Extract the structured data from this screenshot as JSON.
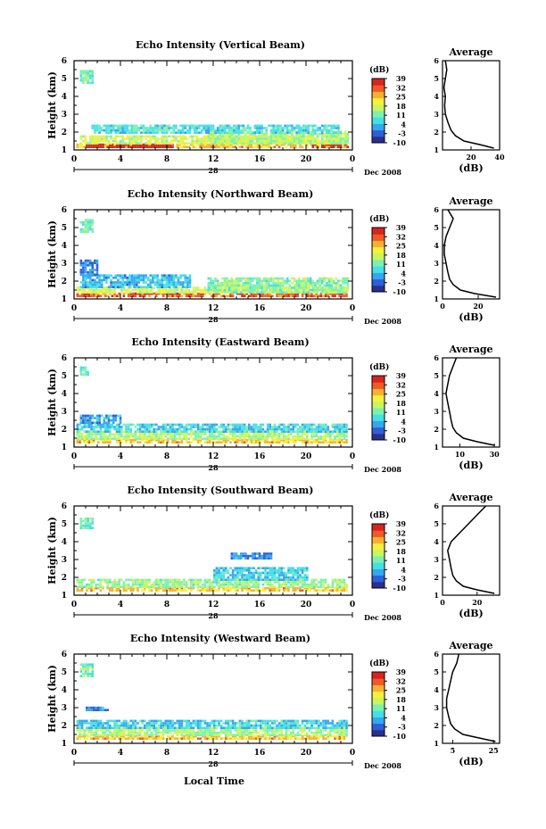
{
  "figure": {
    "xlabel_bottom": "Local Time",
    "date_label": "Dec 2008",
    "day_label": "28",
    "ylabel": "Height (km)",
    "colorbar_unit": "(dB)",
    "avg_title": "Average",
    "avg_xlabel": "(dB)"
  },
  "chart_data": [
    {
      "type": "heatmap",
      "title": "Echo Intensity (Vertical Beam)",
      "x_ticks": [
        "0",
        "4",
        "8",
        "12",
        "16",
        "20",
        "0"
      ],
      "y_ticks": [
        "1",
        "2",
        "3",
        "4",
        "5",
        "6"
      ],
      "xlim": [
        0,
        24
      ],
      "ylim": [
        1,
        6
      ],
      "colorbar_ticks": [
        "39",
        "32",
        "25",
        "18",
        "11",
        "4",
        "-3",
        "-10"
      ],
      "colorbar_range": [
        -10,
        39
      ],
      "colormap": [
        "#2b2f8c",
        "#2f5fd6",
        "#35a7ee",
        "#45e0e6",
        "#7cf0b0",
        "#c8f560",
        "#f7f03a",
        "#f7b030",
        "#f05a28",
        "#d9241e"
      ],
      "data_regions": [
        {
          "x": [
            0.5,
            1.5
          ],
          "y": [
            4.7,
            5.4
          ],
          "level": 11
        },
        {
          "x": [
            0.2,
            23.5
          ],
          "y": [
            1.1,
            1.3
          ],
          "level": 25
        },
        {
          "x": [
            1,
            8.5
          ],
          "y": [
            1.1,
            1.3
          ],
          "level": 39
        },
        {
          "x": [
            20.5,
            23.5
          ],
          "y": [
            1.1,
            1.3
          ],
          "level": 39
        },
        {
          "x": [
            0.5,
            23.5
          ],
          "y": [
            1.3,
            1.7
          ],
          "level": 18
        },
        {
          "x": [
            11.5,
            23.5
          ],
          "y": [
            1.3,
            2.0
          ],
          "level": 15
        },
        {
          "x": [
            1.5,
            23
          ],
          "y": [
            1.9,
            2.3
          ],
          "level": 8
        }
      ],
      "avg": {
        "xlim": [
          0,
          40
        ],
        "x_ticks": [
          "20",
          "40"
        ],
        "y_ticks": [
          "1",
          "2",
          "3",
          "4",
          "5",
          "6"
        ],
        "height": [
          1.1,
          1.3,
          1.5,
          1.8,
          2.1,
          2.5,
          3.0,
          3.5,
          4.0,
          4.5,
          5.0,
          5.5,
          6.0
        ],
        "value": [
          36,
          26,
          15,
          9,
          6,
          4,
          2,
          1.5,
          2,
          1,
          2,
          3,
          2
        ]
      }
    },
    {
      "type": "heatmap",
      "title": "Echo Intensity (Northward Beam)",
      "x_ticks": [
        "0",
        "4",
        "8",
        "12",
        "16",
        "20",
        "0"
      ],
      "y_ticks": [
        "1",
        "2",
        "3",
        "4",
        "5",
        "6"
      ],
      "xlim": [
        0,
        24
      ],
      "ylim": [
        1,
        6
      ],
      "colorbar_ticks": [
        "39",
        "32",
        "25",
        "18",
        "11",
        "4",
        "-3",
        "-10"
      ],
      "colorbar_range": [
        -10,
        39
      ],
      "data_regions": [
        {
          "x": [
            0.5,
            1.5
          ],
          "y": [
            4.7,
            5.4
          ],
          "level": 11
        },
        {
          "x": [
            0.2,
            23.5
          ],
          "y": [
            1.1,
            1.3
          ],
          "level": 32
        },
        {
          "x": [
            0.2,
            23.5
          ],
          "y": [
            1.3,
            1.6
          ],
          "level": 18
        },
        {
          "x": [
            11.5,
            23.5
          ],
          "y": [
            1.3,
            2.2
          ],
          "level": 13
        },
        {
          "x": [
            0.5,
            10
          ],
          "y": [
            1.6,
            2.3
          ],
          "level": 4
        },
        {
          "x": [
            0.5,
            2
          ],
          "y": [
            2.3,
            3.2
          ],
          "level": 0
        }
      ],
      "avg": {
        "xlim": [
          0,
          32
        ],
        "x_ticks": [
          "0",
          "20"
        ],
        "y_ticks": [
          "1",
          "2",
          "3",
          "4",
          "5",
          "6"
        ],
        "height": [
          1.1,
          1.3,
          1.5,
          1.8,
          2.1,
          2.5,
          3.0,
          3.5,
          4.0,
          4.5,
          5.0,
          5.5,
          6.0
        ],
        "value": [
          30,
          18,
          10,
          6,
          4,
          3,
          2,
          1,
          1,
          2,
          4,
          6,
          3
        ]
      }
    },
    {
      "type": "heatmap",
      "title": "Echo Intensity (Eastward Beam)",
      "x_ticks": [
        "0",
        "4",
        "8",
        "12",
        "16",
        "20",
        "0"
      ],
      "y_ticks": [
        "1",
        "2",
        "3",
        "4",
        "5",
        "6"
      ],
      "xlim": [
        0,
        24
      ],
      "ylim": [
        1,
        6
      ],
      "colorbar_ticks": [
        "39",
        "32",
        "25",
        "18",
        "11",
        "4",
        "-3",
        "-10"
      ],
      "colorbar_range": [
        -10,
        39
      ],
      "data_regions": [
        {
          "x": [
            0.5,
            1.2
          ],
          "y": [
            5.0,
            5.4
          ],
          "level": 11
        },
        {
          "x": [
            0.2,
            23.5
          ],
          "y": [
            1.2,
            1.4
          ],
          "level": 25
        },
        {
          "x": [
            0.2,
            23.5
          ],
          "y": [
            1.4,
            1.8
          ],
          "level": 16
        },
        {
          "x": [
            0.2,
            23.5
          ],
          "y": [
            1.8,
            2.3
          ],
          "level": 6
        },
        {
          "x": [
            0.5,
            4
          ],
          "y": [
            2.3,
            2.8
          ],
          "level": 2
        }
      ],
      "avg": {
        "xlim": [
          0,
          33
        ],
        "x_ticks": [
          "10",
          "30"
        ],
        "y_ticks": [
          "1",
          "2",
          "3",
          "4",
          "5",
          "6"
        ],
        "height": [
          1.1,
          1.3,
          1.5,
          1.8,
          2.1,
          2.5,
          3.0,
          3.5,
          4.0,
          4.5,
          5.0,
          5.5,
          6.0
        ],
        "value": [
          30,
          20,
          12,
          8,
          6,
          5,
          4,
          3,
          2,
          3,
          4,
          6,
          8
        ]
      }
    },
    {
      "type": "heatmap",
      "title": "Echo Intensity (Southward Beam)",
      "x_ticks": [
        "0",
        "4",
        "8",
        "12",
        "16",
        "20",
        "0"
      ],
      "y_ticks": [
        "1",
        "2",
        "3",
        "4",
        "5",
        "6"
      ],
      "xlim": [
        0,
        24
      ],
      "ylim": [
        1,
        6
      ],
      "colorbar_ticks": [
        "39",
        "32",
        "25",
        "18",
        "11",
        "4",
        "-3",
        "-10"
      ],
      "colorbar_range": [
        -10,
        39
      ],
      "data_regions": [
        {
          "x": [
            0.5,
            1.5
          ],
          "y": [
            4.7,
            5.3
          ],
          "level": 11
        },
        {
          "x": [
            0.2,
            23.5
          ],
          "y": [
            1.2,
            1.4
          ],
          "level": 25
        },
        {
          "x": [
            0.2,
            23.5
          ],
          "y": [
            1.4,
            1.8
          ],
          "level": 14
        },
        {
          "x": [
            12,
            20
          ],
          "y": [
            1.8,
            2.5
          ],
          "level": 6
        },
        {
          "x": [
            13.5,
            17
          ],
          "y": [
            3.0,
            3.3
          ],
          "level": 0
        }
      ],
      "avg": {
        "xlim": [
          0,
          33
        ],
        "x_ticks": [
          "0",
          "20"
        ],
        "y_ticks": [
          "1",
          "2",
          "3",
          "4",
          "5",
          "6"
        ],
        "height": [
          1.1,
          1.3,
          1.5,
          1.8,
          2.1,
          2.5,
          3.0,
          3.5,
          4.0,
          4.5,
          5.0,
          5.5,
          6.0
        ],
        "value": [
          30,
          20,
          12,
          8,
          6,
          5,
          4,
          3,
          5,
          10,
          15,
          20,
          25
        ]
      }
    },
    {
      "type": "heatmap",
      "title": "Echo Intensity (Westward Beam)",
      "x_ticks": [
        "0",
        "4",
        "8",
        "12",
        "16",
        "20",
        "0"
      ],
      "y_ticks": [
        "1",
        "2",
        "3",
        "4",
        "5",
        "6"
      ],
      "xlim": [
        0,
        24
      ],
      "ylim": [
        1,
        6
      ],
      "colorbar_ticks": [
        "39",
        "32",
        "25",
        "18",
        "11",
        "4",
        "-3",
        "-10"
      ],
      "colorbar_range": [
        -10,
        39
      ],
      "data_regions": [
        {
          "x": [
            0.5,
            1.5
          ],
          "y": [
            4.7,
            5.4
          ],
          "level": 11
        },
        {
          "x": [
            0.2,
            23.5
          ],
          "y": [
            1.2,
            1.4
          ],
          "level": 25
        },
        {
          "x": [
            0.2,
            23.5
          ],
          "y": [
            1.4,
            1.8
          ],
          "level": 15
        },
        {
          "x": [
            0.2,
            23.5
          ],
          "y": [
            1.8,
            2.2
          ],
          "level": 6
        },
        {
          "x": [
            1,
            3
          ],
          "y": [
            2.8,
            3.0
          ],
          "level": 0
        }
      ],
      "avg": {
        "xlim": [
          0,
          28
        ],
        "x_ticks": [
          "5",
          "25"
        ],
        "y_ticks": [
          "1",
          "2",
          "3",
          "4",
          "5",
          "6"
        ],
        "height": [
          1.1,
          1.3,
          1.5,
          1.8,
          2.1,
          2.5,
          3.0,
          3.5,
          4.0,
          4.5,
          5.0,
          5.5,
          6.0
        ],
        "value": [
          26,
          18,
          10,
          6,
          4,
          3,
          2,
          2,
          3,
          4,
          5,
          7,
          8
        ]
      }
    }
  ]
}
